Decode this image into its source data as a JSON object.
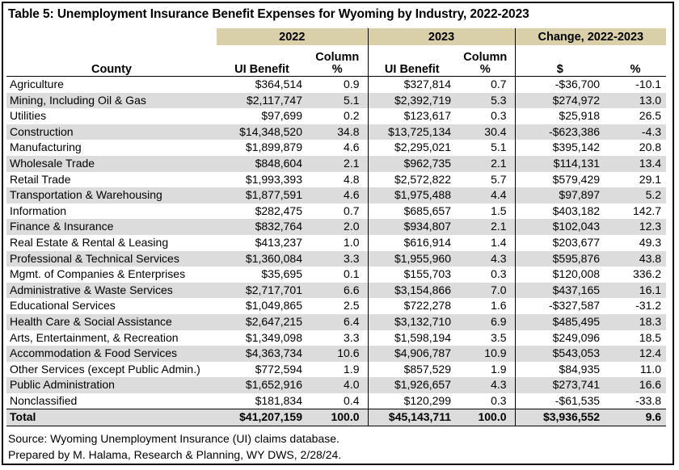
{
  "title": "Table 5: Unemployment Insurance Benefit Expenses for Wyoming by Industry, 2022-2023",
  "headers": {
    "year_2022": "2022",
    "year_2023": "2023",
    "change": "Change, 2022-2023",
    "county": "County",
    "ui_benefit": "UI Benefit",
    "column_pct_line1": "Column",
    "column_pct_line2": "%",
    "dollar": "$",
    "pct": "%"
  },
  "rows": [
    {
      "name": "Agriculture",
      "ui2022": "$364,514",
      "p2022": "0.9",
      "ui2023": "$327,814",
      "p2023": "0.7",
      "chg": "-$36,700",
      "chgp": "-10.1"
    },
    {
      "name": "Mining, Including Oil & Gas",
      "ui2022": "$2,117,747",
      "p2022": "5.1",
      "ui2023": "$2,392,719",
      "p2023": "5.3",
      "chg": "$274,972",
      "chgp": "13.0"
    },
    {
      "name": "Utilities",
      "ui2022": "$97,699",
      "p2022": "0.2",
      "ui2023": "$123,617",
      "p2023": "0.3",
      "chg": "$25,918",
      "chgp": "26.5"
    },
    {
      "name": "Construction",
      "ui2022": "$14,348,520",
      "p2022": "34.8",
      "ui2023": "$13,725,134",
      "p2023": "30.4",
      "chg": "-$623,386",
      "chgp": "-4.3"
    },
    {
      "name": "Manufacturing",
      "ui2022": "$1,899,879",
      "p2022": "4.6",
      "ui2023": "$2,295,021",
      "p2023": "5.1",
      "chg": "$395,142",
      "chgp": "20.8"
    },
    {
      "name": "Wholesale Trade",
      "ui2022": "$848,604",
      "p2022": "2.1",
      "ui2023": "$962,735",
      "p2023": "2.1",
      "chg": "$114,131",
      "chgp": "13.4"
    },
    {
      "name": "Retail Trade",
      "ui2022": "$1,993,393",
      "p2022": "4.8",
      "ui2023": "$2,572,822",
      "p2023": "5.7",
      "chg": "$579,429",
      "chgp": "29.1"
    },
    {
      "name": "Transportation & Warehousing",
      "ui2022": "$1,877,591",
      "p2022": "4.6",
      "ui2023": "$1,975,488",
      "p2023": "4.4",
      "chg": "$97,897",
      "chgp": "5.2"
    },
    {
      "name": "Information",
      "ui2022": "$282,475",
      "p2022": "0.7",
      "ui2023": "$685,657",
      "p2023": "1.5",
      "chg": "$403,182",
      "chgp": "142.7"
    },
    {
      "name": "Finance & Insurance",
      "ui2022": "$832,764",
      "p2022": "2.0",
      "ui2023": "$934,807",
      "p2023": "2.1",
      "chg": "$102,043",
      "chgp": "12.3"
    },
    {
      "name": "Real Estate & Rental & Leasing",
      "ui2022": "$413,237",
      "p2022": "1.0",
      "ui2023": "$616,914",
      "p2023": "1.4",
      "chg": "$203,677",
      "chgp": "49.3"
    },
    {
      "name": "Professional & Technical Services",
      "ui2022": "$1,360,084",
      "p2022": "3.3",
      "ui2023": "$1,955,960",
      "p2023": "4.3",
      "chg": "$595,876",
      "chgp": "43.8"
    },
    {
      "name": "Mgmt. of Companies & Enterprises",
      "ui2022": "$35,695",
      "p2022": "0.1",
      "ui2023": "$155,703",
      "p2023": "0.3",
      "chg": "$120,008",
      "chgp": "336.2"
    },
    {
      "name": "Administrative & Waste Services",
      "ui2022": "$2,717,701",
      "p2022": "6.6",
      "ui2023": "$3,154,866",
      "p2023": "7.0",
      "chg": "$437,165",
      "chgp": "16.1"
    },
    {
      "name": "Educational Services",
      "ui2022": "$1,049,865",
      "p2022": "2.5",
      "ui2023": "$722,278",
      "p2023": "1.6",
      "chg": "-$327,587",
      "chgp": "-31.2"
    },
    {
      "name": "Health Care & Social Assistance",
      "ui2022": "$2,647,215",
      "p2022": "6.4",
      "ui2023": "$3,132,710",
      "p2023": "6.9",
      "chg": "$485,495",
      "chgp": "18.3"
    },
    {
      "name": "Arts, Entertainment, & Recreation",
      "ui2022": "$1,349,098",
      "p2022": "3.3",
      "ui2023": "$1,598,194",
      "p2023": "3.5",
      "chg": "$249,096",
      "chgp": "18.5"
    },
    {
      "name": "Accommodation & Food Services",
      "ui2022": "$4,363,734",
      "p2022": "10.6",
      "ui2023": "$4,906,787",
      "p2023": "10.9",
      "chg": "$543,053",
      "chgp": "12.4"
    },
    {
      "name": "Other Services (except Public Admin.)",
      "ui2022": "$772,594",
      "p2022": "1.9",
      "ui2023": "$857,529",
      "p2023": "1.9",
      "chg": "$84,935",
      "chgp": "11.0"
    },
    {
      "name": "Public Administration",
      "ui2022": "$1,652,916",
      "p2022": "4.0",
      "ui2023": "$1,926,657",
      "p2023": "4.3",
      "chg": "$273,741",
      "chgp": "16.6"
    },
    {
      "name": "Nonclassified",
      "ui2022": "$181,834",
      "p2022": "0.4",
      "ui2023": "$120,299",
      "p2023": "0.3",
      "chg": "-$61,535",
      "chgp": "-33.8"
    }
  ],
  "total": {
    "name": "Total",
    "ui2022": "$41,207,159",
    "p2022": "100.0",
    "ui2023": "$45,143,711",
    "p2023": "100.0",
    "chg": "$3,936,552",
    "chgp": "9.6"
  },
  "source_line1": "Source: Wyoming Unemployment Insurance (UI) claims database.",
  "source_line2": "Prepared by M. Halama, Research & Planning, WY DWS, 2/28/24.",
  "colors": {
    "header_fill": "#d9cfa9",
    "stripe_fill": "#dcdcdc"
  }
}
